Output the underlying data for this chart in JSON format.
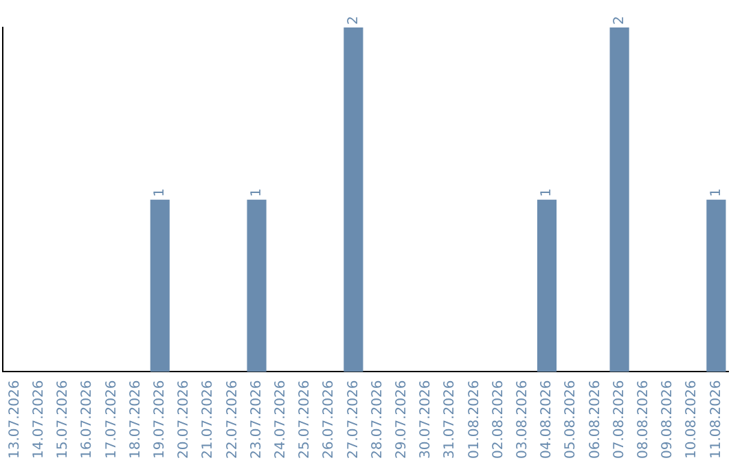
{
  "chart_data": {
    "type": "bar",
    "categories": [
      "13.07.2026",
      "14.07.2026",
      "15.07.2026",
      "16.07.2026",
      "17.07.2026",
      "18.07.2026",
      "19.07.2026",
      "20.07.2026",
      "21.07.2026",
      "22.07.2026",
      "23.07.2026",
      "24.07.2026",
      "25.07.2026",
      "26.07.2026",
      "27.07.2026",
      "28.07.2026",
      "29.07.2026",
      "30.07.2026",
      "31.07.2026",
      "01.08.2026",
      "02.08.2026",
      "03.08.2026",
      "04.08.2026",
      "05.08.2026",
      "06.08.2026",
      "07.08.2026",
      "08.08.2026",
      "09.08.2026",
      "10.08.2026",
      "11.08.2026"
    ],
    "values": [
      0,
      0,
      0,
      0,
      0,
      0,
      1,
      0,
      0,
      0,
      1,
      0,
      0,
      0,
      2,
      0,
      0,
      0,
      0,
      0,
      0,
      0,
      1,
      0,
      0,
      2,
      0,
      0,
      0,
      1
    ],
    "value_labels": [
      null,
      null,
      null,
      null,
      null,
      null,
      "1",
      null,
      null,
      null,
      "1",
      null,
      null,
      null,
      "2",
      null,
      null,
      null,
      null,
      null,
      null,
      null,
      "1",
      null,
      null,
      "2",
      null,
      null,
      null,
      "1"
    ],
    "color": "#6a8caf",
    "tick_labels": "x",
    "grid": false,
    "legend": false
  }
}
